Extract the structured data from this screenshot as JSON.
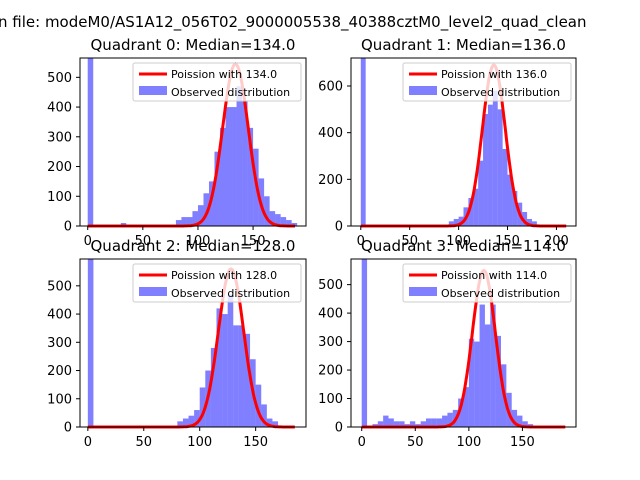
{
  "figure": {
    "title": "n file: modeM0/AS1A12_056T02_9000005538_40388cztM0_level2_quad_clean"
  },
  "chart_data": [
    {
      "type": "bar",
      "title": "Quadrant 0: Median=134.0",
      "median": 134.0,
      "legend": [
        "Poission with 134.0",
        "Observed distribution"
      ],
      "xlim": [
        -7,
        198
      ],
      "ylim": [
        0,
        565
      ],
      "xticks": [
        0,
        50,
        100,
        150
      ],
      "yticks": [
        0,
        100,
        200,
        300,
        400,
        500
      ],
      "bins": {
        "x": [
          0,
          30,
          80,
          85,
          90,
          95,
          100,
          105,
          110,
          115,
          120,
          125,
          130,
          135,
          140,
          145,
          150,
          155,
          160,
          165,
          170,
          175,
          180,
          185
        ],
        "width": 5,
        "values": [
          565,
          10,
          20,
          30,
          30,
          50,
          70,
          110,
          150,
          250,
          330,
          400,
          400,
          470,
          420,
          330,
          260,
          160,
          100,
          50,
          40,
          30,
          20,
          10
        ]
      },
      "poisson_peak": 545
    },
    {
      "type": "bar",
      "title": "Quadrant 1: Median=136.0",
      "median": 136.0,
      "legend": [
        "Poission with 136.0",
        "Observed distribution"
      ],
      "xlim": [
        -10,
        220
      ],
      "ylim": [
        0,
        720
      ],
      "xticks": [
        0,
        50,
        100,
        150,
        200
      ],
      "yticks": [
        0,
        200,
        400,
        600
      ],
      "bins": {
        "x": [
          0,
          90,
          95,
          100,
          105,
          110,
          115,
          120,
          125,
          130,
          135,
          140,
          145,
          150,
          155,
          160,
          165,
          170,
          175
        ],
        "width": 5,
        "values": [
          720,
          20,
          30,
          40,
          80,
          120,
          160,
          280,
          480,
          520,
          580,
          500,
          330,
          220,
          150,
          100,
          60,
          30,
          20
        ]
      },
      "poisson_peak": 690
    },
    {
      "type": "bar",
      "title": "Quadrant 2: Median=128.0",
      "median": 128.0,
      "legend": [
        "Poission with 128.0",
        "Observed distribution"
      ],
      "xlim": [
        -7,
        195
      ],
      "ylim": [
        0,
        595
      ],
      "xticks": [
        0,
        50,
        100,
        150
      ],
      "yticks": [
        0,
        100,
        200,
        300,
        400,
        500
      ],
      "bins": {
        "x": [
          0,
          80,
          85,
          90,
          95,
          100,
          105,
          110,
          115,
          120,
          125,
          130,
          135,
          140,
          145,
          150,
          155,
          160,
          165
        ],
        "width": 5,
        "values": [
          595,
          20,
          30,
          40,
          60,
          140,
          200,
          280,
          420,
          400,
          470,
          360,
          360,
          330,
          240,
          150,
          80,
          30,
          20
        ]
      },
      "poisson_peak": 560
    },
    {
      "type": "bar",
      "title": "Quadrant 3: Median=114.0",
      "median": 114.0,
      "legend": [
        "Poission with 114.0",
        "Observed distribution"
      ],
      "xlim": [
        -10,
        200
      ],
      "ylim": [
        0,
        590
      ],
      "xticks": [
        0,
        50,
        100,
        150
      ],
      "yticks": [
        0,
        100,
        200,
        300,
        400,
        500
      ],
      "bins": {
        "x": [
          0,
          10,
          15,
          20,
          25,
          30,
          35,
          40,
          45,
          50,
          55,
          60,
          65,
          70,
          75,
          80,
          85,
          90,
          95,
          100,
          105,
          110,
          115,
          120,
          125,
          130,
          135,
          140,
          145,
          150,
          155
        ],
        "width": 5,
        "values": [
          590,
          10,
          20,
          40,
          30,
          20,
          20,
          10,
          20,
          10,
          20,
          30,
          30,
          30,
          40,
          50,
          60,
          100,
          140,
          310,
          300,
          430,
          360,
          430,
          320,
          220,
          120,
          60,
          40,
          20,
          10
        ]
      },
      "poisson_peak": 550
    }
  ]
}
